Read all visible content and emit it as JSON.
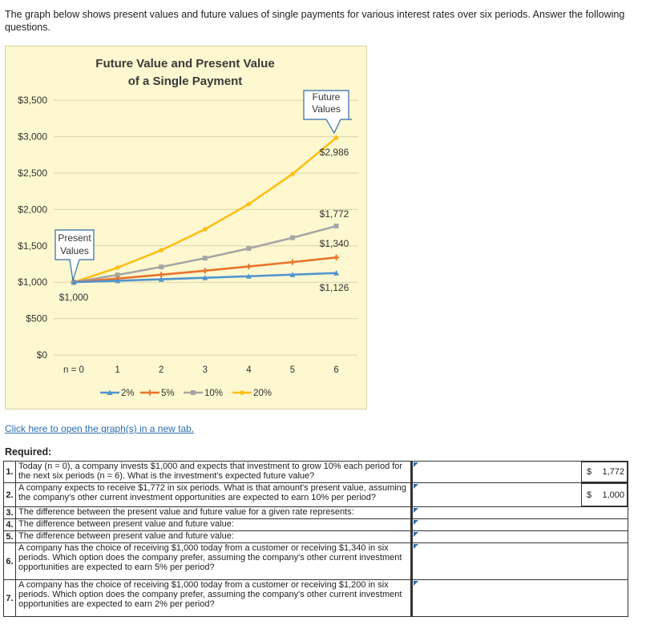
{
  "intro": "The graph below shows present values and future values of single payments for various interest rates over six periods. Answer the following questions.",
  "link_text": "Click here to open the graph(s) in a new tab.",
  "required_label": "Required:",
  "chart_data": {
    "type": "line",
    "title_line1": "Future Value and Present Value",
    "title_line2": "of a Single Payment",
    "categories": [
      "n = 0",
      "1",
      "2",
      "3",
      "4",
      "5",
      "6"
    ],
    "ylim": [
      0,
      3500
    ],
    "yticks": [
      "$3,500",
      "$3,000",
      "$2,500",
      "$2,000",
      "$1,500",
      "$1,000",
      "$500",
      "$0"
    ],
    "grid": true,
    "legend_placement": "bottom",
    "series": [
      {
        "name": "2%",
        "color": "#4f94cf",
        "values": [
          1000,
          1020,
          1040,
          1061,
          1082,
          1104,
          1126
        ]
      },
      {
        "name": "5%",
        "color": "#e9732a",
        "values": [
          1000,
          1050,
          1103,
          1158,
          1216,
          1276,
          1340
        ]
      },
      {
        "name": "10%",
        "color": "#a6a6a6",
        "values": [
          1000,
          1100,
          1210,
          1331,
          1464,
          1611,
          1772
        ]
      },
      {
        "name": "20%",
        "color": "#fdbf17",
        "values": [
          1000,
          1200,
          1440,
          1728,
          2074,
          2488,
          2986
        ]
      }
    ],
    "annotations": {
      "future_values_line1": "Future",
      "future_values_line2": "Values",
      "present_values_line1": "Present",
      "present_values_line2": "Values",
      "label_1000": "$1,000",
      "label_2986": "$2,986",
      "label_1772": "$1,772",
      "label_1340": "$1,340",
      "label_1126": "$1,126"
    }
  },
  "questions": [
    {
      "num": "1.",
      "text": "Today (n = 0), a company invests $1,000 and expects that investment to grow 10% each period for the next six periods (n = 6). What is the investment's expected future value?",
      "currency": "$",
      "answer": "1,772"
    },
    {
      "num": "2.",
      "text": "A company expects to receive $1,772 in six periods. What is that amount's present value, assuming the company's other current investment opportunities are expected to earn 10% per period?",
      "currency": "$",
      "answer": "1,000"
    },
    {
      "num": "3.",
      "text": "The difference between the present value and future value for a given rate represents:",
      "answer": ""
    },
    {
      "num": "4.",
      "text": "The difference between present value and future value:",
      "answer": ""
    },
    {
      "num": "5.",
      "text": "The difference between present value and future value:",
      "answer": ""
    },
    {
      "num": "6.",
      "text": "A company has the choice of receiving $1,000 today from a customer or receiving $1,340 in six periods. Which option does the company prefer, assuming the company's other current investment opportunities are expected to earn 5% per period?",
      "answer": ""
    },
    {
      "num": "7.",
      "text": "A company has the choice of receiving $1,000 today from a customer or receiving $1,200 in six periods. Which option does the company prefer, assuming the company's other current investment opportunities are expected to earn 2% per period?",
      "answer": ""
    }
  ]
}
